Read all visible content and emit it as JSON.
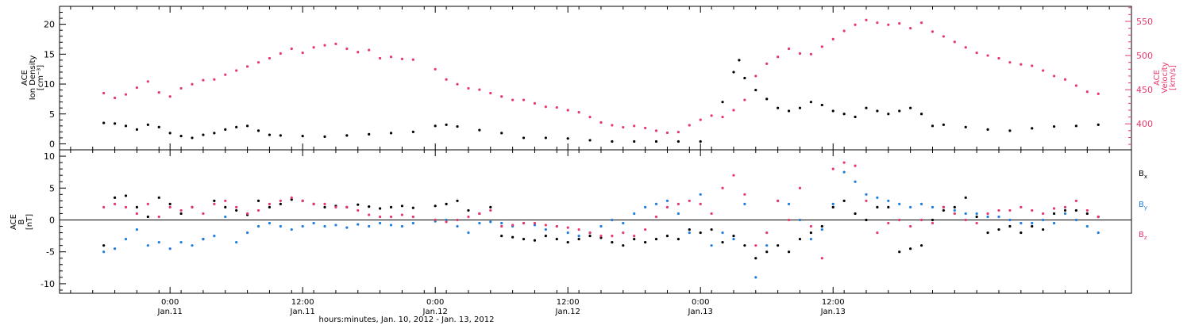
{
  "chart_data": [
    {
      "type": "scatter",
      "panel": "top",
      "ylabel_left": [
        "ACE",
        "Ion Density",
        "[cm⁻³]"
      ],
      "ylabel_right": [
        "ACE",
        "Velocity",
        "[km/s]"
      ],
      "left_ylim": [
        -1,
        23
      ],
      "left_ticks": [
        0,
        5,
        10,
        15,
        20
      ],
      "right_ylim": [
        362,
        572
      ],
      "right_ticks": [
        400,
        450,
        500,
        550
      ],
      "grid": false,
      "series": [
        {
          "name": "",
          "axis": "left",
          "color": "#000000",
          "x": [
            -6,
            -5,
            -4,
            -3,
            -2,
            -1,
            0,
            1,
            2,
            3,
            4,
            5,
            6,
            7,
            8,
            9,
            10,
            12,
            14,
            16,
            18,
            20,
            22,
            24,
            25,
            26,
            28,
            30,
            32,
            34,
            36,
            38,
            40,
            42,
            44,
            46,
            48,
            50,
            51,
            51.5,
            52,
            53,
            54,
            55,
            56,
            57,
            58,
            59,
            60,
            61,
            62,
            63,
            64,
            65,
            66,
            67,
            68,
            69,
            70,
            72,
            74,
            76,
            78,
            80,
            82,
            84
          ],
          "y": [
            3.5,
            3.4,
            3.0,
            2.4,
            3.2,
            2.8,
            1.8,
            1.3,
            1.0,
            1.5,
            1.8,
            2.4,
            2.8,
            3.0,
            2.2,
            1.5,
            1.4,
            1.3,
            1.2,
            1.4,
            1.6,
            1.8,
            2.0,
            3.0,
            3.2,
            2.9,
            2.3,
            1.8,
            1.0,
            1.0,
            0.9,
            0.6,
            0.4,
            0.4,
            0.4,
            0.4,
            0.4,
            7.0,
            12.0,
            14.0,
            11.0,
            9.0,
            7.5,
            6.0,
            5.5,
            6.0,
            7.0,
            6.5,
            5.5,
            5.0,
            4.5,
            6.0,
            5.5,
            5.0,
            5.5,
            6.0,
            5.0,
            3.0,
            3.2,
            2.8,
            2.4,
            2.2,
            2.6,
            2.9,
            3.0,
            3.2
          ]
        },
        {
          "name": "",
          "axis": "right",
          "color": "#e8386a",
          "x": [
            -6,
            -5,
            -4,
            -3,
            -2,
            -1,
            0,
            1,
            2,
            3,
            4,
            5,
            6,
            7,
            8,
            9,
            10,
            11,
            12,
            13,
            14,
            15,
            16,
            17,
            18,
            19,
            20,
            21,
            22,
            24,
            25,
            26,
            27,
            28,
            29,
            30,
            31,
            32,
            33,
            34,
            35,
            36,
            37,
            38,
            39,
            40,
            41,
            42,
            43,
            44,
            45,
            46,
            47,
            48,
            49,
            50,
            51,
            52,
            53,
            54,
            55,
            56,
            57,
            58,
            59,
            60,
            61,
            62,
            63,
            64,
            65,
            66,
            67,
            68,
            69,
            70,
            71,
            72,
            73,
            74,
            75,
            76,
            77,
            78,
            79,
            80,
            81,
            82,
            83,
            84
          ],
          "y": [
            445,
            438,
            443,
            453,
            462,
            446,
            440,
            452,
            458,
            464,
            465,
            472,
            478,
            484,
            490,
            496,
            503,
            510,
            504,
            512,
            515,
            517,
            510,
            505,
            508,
            496,
            498,
            495,
            494,
            480,
            465,
            458,
            452,
            450,
            445,
            440,
            435,
            435,
            430,
            425,
            424,
            420,
            417,
            410,
            402,
            398,
            395,
            397,
            394,
            390,
            387,
            388,
            398,
            406,
            412,
            410,
            420,
            435,
            470,
            488,
            498,
            510,
            503,
            502,
            513,
            524,
            536,
            545,
            552,
            548,
            545,
            547,
            540,
            548,
            535,
            528,
            520,
            512,
            504,
            500,
            496,
            490,
            487,
            485,
            478,
            470,
            465,
            456,
            447,
            444
          ]
        }
      ]
    },
    {
      "type": "scatter",
      "panel": "bottom",
      "ylabel_left": [
        "ACE",
        "B",
        "[nT]"
      ],
      "ylim": [
        -11.5,
        11
      ],
      "ticks": [
        -10,
        -5,
        0,
        5,
        10
      ],
      "zero_line": true,
      "grid": false,
      "legend_position": "right",
      "series": [
        {
          "name": "Bx",
          "color": "#000000",
          "x": [
            -6,
            -5,
            -4,
            -3,
            -2,
            -1,
            0,
            1,
            2,
            3,
            4,
            5,
            6,
            7,
            8,
            9,
            10,
            11,
            12,
            13,
            14,
            15,
            16,
            17,
            18,
            19,
            20,
            21,
            22,
            24,
            25,
            26,
            27,
            28,
            29,
            30,
            31,
            32,
            33,
            34,
            35,
            36,
            37,
            38,
            39,
            40,
            41,
            42,
            43,
            44,
            45,
            46,
            47,
            48,
            49,
            50,
            51,
            52,
            53,
            54,
            55,
            56,
            57,
            58,
            59,
            60,
            61,
            62,
            63,
            64,
            65,
            66,
            67,
            68,
            69,
            70,
            71,
            72,
            73,
            74,
            75,
            76,
            77,
            78,
            79,
            80,
            81,
            82,
            83,
            84
          ],
          "y": [
            -4.0,
            3.5,
            3.8,
            2.0,
            0.5,
            3.5,
            2.5,
            1.0,
            2.0,
            -3.0,
            3.0,
            2.0,
            1.5,
            0.8,
            3.0,
            2.0,
            2.5,
            3.2,
            3.0,
            2.5,
            2.0,
            2.2,
            2.0,
            2.4,
            2.1,
            1.8,
            2.0,
            2.2,
            1.9,
            2.2,
            2.5,
            3.0,
            1.5,
            1.0,
            2.0,
            -2.5,
            -2.7,
            -3.0,
            -3.2,
            -2.5,
            -3.0,
            -3.5,
            -3.0,
            -2.5,
            -2.8,
            -3.5,
            -4.0,
            -3.0,
            -3.5,
            -3.0,
            -2.5,
            -3.0,
            -1.5,
            -2.0,
            -1.5,
            -3.5,
            -2.5,
            -4.0,
            -6.0,
            -5.0,
            -4.0,
            -5.0,
            -3.0,
            -2.0,
            -1.0,
            2.0,
            3.0,
            1.0,
            0.0,
            2.0,
            2.0,
            -5.0,
            -4.5,
            -4.0,
            0.0,
            1.5,
            2.0,
            3.5,
            0.5,
            -2.0,
            -1.5,
            -1.0,
            -2.0,
            -1.0,
            -1.5,
            1.0,
            1.5,
            1.5,
            1.0,
            0.5
          ]
        },
        {
          "name": "By",
          "color": "#1c7fe0",
          "x": [
            -6,
            -5,
            -4,
            -3,
            -2,
            -1,
            0,
            1,
            2,
            3,
            4,
            5,
            6,
            7,
            8,
            9,
            10,
            11,
            12,
            13,
            14,
            15,
            16,
            17,
            18,
            19,
            20,
            21,
            22,
            24,
            25,
            26,
            27,
            28,
            29,
            30,
            31,
            32,
            33,
            34,
            35,
            36,
            37,
            38,
            39,
            40,
            41,
            42,
            43,
            44,
            45,
            46,
            47,
            48,
            49,
            50,
            51,
            52,
            53,
            54,
            55,
            56,
            57,
            58,
            59,
            60,
            61,
            62,
            63,
            64,
            65,
            66,
            67,
            68,
            69,
            70,
            71,
            72,
            73,
            74,
            75,
            76,
            77,
            78,
            79,
            80,
            81,
            82,
            83,
            84
          ],
          "y": [
            -5.0,
            -4.5,
            -3.0,
            -1.5,
            -4.0,
            -3.5,
            -4.5,
            -3.5,
            -4.0,
            -3.0,
            -2.5,
            0.5,
            -3.5,
            -2.0,
            -1.0,
            -0.5,
            -1.0,
            -1.5,
            -1.0,
            -0.5,
            -1.0,
            -0.8,
            -1.2,
            -0.7,
            -1.0,
            -0.5,
            -0.8,
            -1.0,
            -0.5,
            -0.2,
            0.0,
            -1.0,
            -2.0,
            -0.5,
            -0.3,
            -0.5,
            -1.0,
            -0.5,
            -0.8,
            -1.5,
            -1.0,
            -2.0,
            -2.5,
            -2.0,
            -1.0,
            0.0,
            -0.5,
            1.0,
            2.0,
            2.5,
            3.0,
            1.0,
            -2.0,
            4.0,
            -4.0,
            -2.0,
            -3.0,
            2.5,
            -9.0,
            -4.0,
            3.0,
            2.5,
            0.0,
            -3.0,
            -1.5,
            2.5,
            7.5,
            6.0,
            4.0,
            3.5,
            3.0,
            2.5,
            2.0,
            2.5,
            2.0,
            2.0,
            1.5,
            1.0,
            1.0,
            0.5,
            0.5,
            0.0,
            -0.5,
            -0.5,
            0.0,
            -0.5,
            1.0,
            0.0,
            -1.0,
            -2.0
          ]
        },
        {
          "name": "Bz",
          "color": "#e8386a",
          "x": [
            -6,
            -5,
            -4,
            -3,
            -2,
            -1,
            0,
            1,
            2,
            3,
            4,
            5,
            6,
            7,
            8,
            9,
            10,
            11,
            12,
            13,
            14,
            15,
            16,
            17,
            18,
            19,
            20,
            21,
            22,
            24,
            25,
            26,
            27,
            28,
            29,
            30,
            31,
            32,
            33,
            34,
            35,
            36,
            37,
            38,
            39,
            40,
            41,
            42,
            43,
            44,
            45,
            46,
            47,
            48,
            49,
            50,
            51,
            52,
            53,
            54,
            55,
            56,
            57,
            58,
            59,
            60,
            61,
            62,
            63,
            64,
            65,
            66,
            67,
            68,
            69,
            70,
            71,
            72,
            73,
            74,
            75,
            76,
            77,
            78,
            79,
            80,
            81,
            82,
            83,
            84
          ],
          "y": [
            2.0,
            2.5,
            2.0,
            1.0,
            2.5,
            0.5,
            2.0,
            1.5,
            2.0,
            1.0,
            2.5,
            3.0,
            2.0,
            1.0,
            1.5,
            2.5,
            3.0,
            3.5,
            3.0,
            2.5,
            2.5,
            2.0,
            2.0,
            1.5,
            0.8,
            0.5,
            0.5,
            0.8,
            0.5,
            0.0,
            -0.3,
            0.0,
            0.5,
            1.0,
            1.5,
            -1.0,
            -0.8,
            -0.5,
            -0.5,
            -0.8,
            -1.0,
            -1.2,
            -1.5,
            -2.0,
            -2.5,
            -2.5,
            -2.0,
            -2.5,
            -1.5,
            0.5,
            2.0,
            2.5,
            3.0,
            2.5,
            1.0,
            5.0,
            7.0,
            4.0,
            -4.0,
            -2.0,
            3.0,
            0.0,
            5.0,
            -1.0,
            -6.0,
            8.0,
            9.0,
            8.5,
            3.0,
            -2.0,
            -0.5,
            0.0,
            -1.0,
            0.0,
            -0.5,
            2.0,
            1.0,
            0.0,
            -0.5,
            1.0,
            1.5,
            1.5,
            2.0,
            1.5,
            1.0,
            1.8,
            2.0,
            3.0,
            1.5,
            0.5
          ]
        }
      ]
    }
  ],
  "x_axis": {
    "xlim": [
      -10,
      87
    ],
    "ticks": [
      {
        "x": 0,
        "time": "0:00",
        "date": "Jan.11"
      },
      {
        "x": 12,
        "time": "12:00",
        "date": "Jan.11"
      },
      {
        "x": 24,
        "time": "0:00",
        "date": "Jan.12"
      },
      {
        "x": 36,
        "time": "12:00",
        "date": "Jan.12"
      },
      {
        "x": 48,
        "time": "0:00",
        "date": "Jan.13"
      },
      {
        "x": 60,
        "time": "12:00",
        "date": "Jan.13"
      }
    ],
    "label": "hours:minutes, Jan. 10, 2012 - Jan. 13, 2012"
  },
  "legend": {
    "bx": {
      "main": "B",
      "sub": "x"
    },
    "by": {
      "main": "B",
      "sub": "y"
    },
    "bz": {
      "main": "B",
      "sub": "z"
    }
  },
  "colors": {
    "black": "#000000",
    "blue": "#1c7fe0",
    "pink": "#e8386a"
  }
}
